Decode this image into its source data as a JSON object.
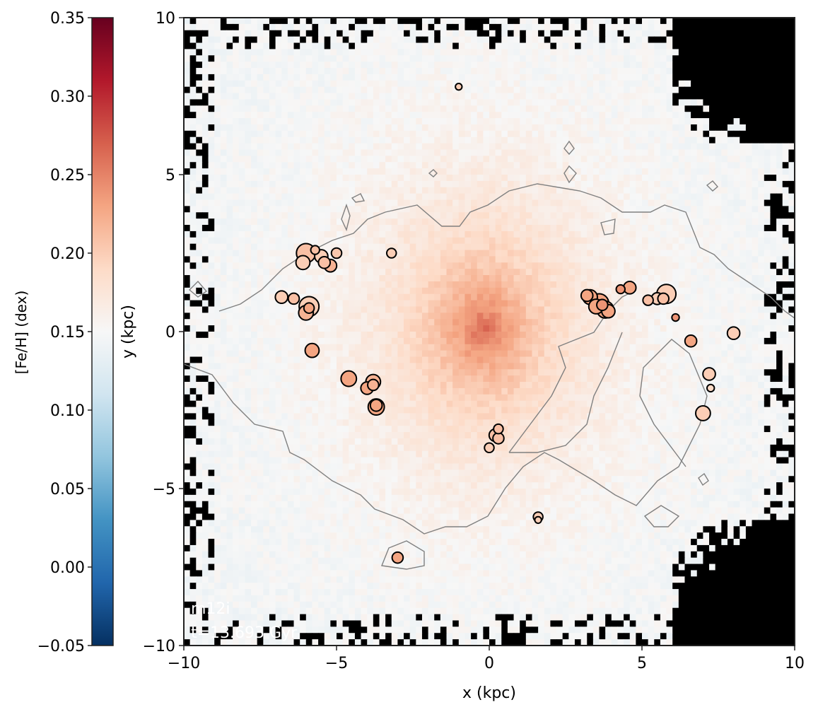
{
  "chart_data": {
    "type": "heatmap",
    "title": "",
    "xlabel": "x (kpc)",
    "ylabel": "y (kpc)",
    "xlim": [
      -10,
      10
    ],
    "ylim": [
      -10,
      10
    ],
    "xticks": [
      -10,
      -5,
      0,
      5,
      10
    ],
    "yticks": [
      -10,
      -5,
      0,
      5,
      10
    ],
    "xtick_labels": [
      "−10",
      "−5",
      "0",
      "5",
      "10"
    ],
    "ytick_labels": [
      "−10",
      "−5",
      "0",
      "5",
      "10"
    ],
    "grid": false,
    "colorbar": {
      "label": "[Fe/H] (dex)",
      "colormap": "RdBu_r",
      "range": [
        -0.05,
        0.35
      ],
      "ticks": [
        -0.05,
        0.0,
        0.05,
        0.1,
        0.15,
        0.2,
        0.25,
        0.3,
        0.35
      ],
      "tick_labels": [
        "−0.05",
        "0.00",
        "0.05",
        "0.10",
        "0.15",
        "0.20",
        "0.25",
        "0.30",
        "0.35"
      ],
      "colors": [
        "#053061",
        "#2166ac",
        "#4393c3",
        "#92c5de",
        "#d1e5f0",
        "#f7f7f7",
        "#fddbc7",
        "#f4a582",
        "#d6604d",
        "#b2182b",
        "#67001f"
      ]
    },
    "annotation": [
      "m12i",
      "t=13.693 Gyr"
    ],
    "map": {
      "center_value": 0.265,
      "background_value": 0.145,
      "peak_xy": [
        -0.2,
        0.1
      ],
      "empty_color": "#000000"
    },
    "contour_color": "#808080",
    "clusters": [
      {
        "x": -6.0,
        "y": 2.5,
        "feh": 0.21,
        "size": 2.6
      },
      {
        "x": -5.5,
        "y": 2.4,
        "feh": 0.2,
        "size": 1.8
      },
      {
        "x": -5.0,
        "y": 2.5,
        "feh": 0.205,
        "size": 1.4
      },
      {
        "x": -6.1,
        "y": 2.2,
        "feh": 0.2,
        "size": 1.9
      },
      {
        "x": -5.7,
        "y": 2.6,
        "feh": 0.21,
        "size": 1.2
      },
      {
        "x": -5.4,
        "y": 2.2,
        "feh": 0.21,
        "size": 1.6
      },
      {
        "x": -5.2,
        "y": 2.1,
        "feh": 0.22,
        "size": 1.7
      },
      {
        "x": -3.2,
        "y": 2.5,
        "feh": 0.2,
        "size": 1.3
      },
      {
        "x": -6.8,
        "y": 1.1,
        "feh": 0.2,
        "size": 1.7
      },
      {
        "x": -6.4,
        "y": 1.05,
        "feh": 0.21,
        "size": 1.5
      },
      {
        "x": -5.9,
        "y": 0.8,
        "feh": 0.2,
        "size": 2.7
      },
      {
        "x": -6.0,
        "y": 0.6,
        "feh": 0.22,
        "size": 2.0
      },
      {
        "x": -5.9,
        "y": 0.75,
        "feh": 0.23,
        "size": 1.4
      },
      {
        "x": -5.8,
        "y": -0.6,
        "feh": 0.23,
        "size": 1.9
      },
      {
        "x": -4.6,
        "y": -1.5,
        "feh": 0.23,
        "size": 2.1
      },
      {
        "x": -4.0,
        "y": -1.8,
        "feh": 0.23,
        "size": 1.7
      },
      {
        "x": -3.8,
        "y": -1.6,
        "feh": 0.22,
        "size": 2.0
      },
      {
        "x": -3.8,
        "y": -1.7,
        "feh": 0.22,
        "size": 1.5
      },
      {
        "x": -3.7,
        "y": -2.4,
        "feh": 0.23,
        "size": 2.2
      },
      {
        "x": -3.7,
        "y": -2.35,
        "feh": 0.23,
        "size": 1.6
      },
      {
        "x": -1.0,
        "y": 7.8,
        "feh": 0.2,
        "size": 0.9
      },
      {
        "x": 0.2,
        "y": -3.3,
        "feh": 0.21,
        "size": 1.7
      },
      {
        "x": 0.3,
        "y": -3.1,
        "feh": 0.21,
        "size": 1.3
      },
      {
        "x": 0.0,
        "y": -3.7,
        "feh": 0.2,
        "size": 1.3
      },
      {
        "x": 0.3,
        "y": -3.4,
        "feh": 0.21,
        "size": 1.5
      },
      {
        "x": 3.3,
        "y": 1.1,
        "feh": 0.23,
        "size": 2.0
      },
      {
        "x": 3.6,
        "y": 0.9,
        "feh": 0.23,
        "size": 2.6
      },
      {
        "x": 3.8,
        "y": 0.7,
        "feh": 0.23,
        "size": 2.3
      },
      {
        "x": 3.5,
        "y": 0.8,
        "feh": 0.23,
        "size": 2.0
      },
      {
        "x": 3.2,
        "y": 1.15,
        "feh": 0.23,
        "size": 1.6
      },
      {
        "x": 3.9,
        "y": 0.65,
        "feh": 0.23,
        "size": 1.8
      },
      {
        "x": 3.7,
        "y": 0.85,
        "feh": 0.24,
        "size": 1.5
      },
      {
        "x": 4.6,
        "y": 1.4,
        "feh": 0.23,
        "size": 1.7
      },
      {
        "x": 4.3,
        "y": 1.35,
        "feh": 0.24,
        "size": 1.2
      },
      {
        "x": 5.8,
        "y": 1.2,
        "feh": 0.2,
        "size": 2.6
      },
      {
        "x": 5.5,
        "y": 1.05,
        "feh": 0.2,
        "size": 1.6
      },
      {
        "x": 5.2,
        "y": 1.0,
        "feh": 0.21,
        "size": 1.4
      },
      {
        "x": 5.7,
        "y": 1.05,
        "feh": 0.21,
        "size": 1.5
      },
      {
        "x": 6.1,
        "y": 0.45,
        "feh": 0.24,
        "size": 1.0
      },
      {
        "x": 6.6,
        "y": -0.3,
        "feh": 0.23,
        "size": 1.6
      },
      {
        "x": 8.0,
        "y": -0.05,
        "feh": 0.2,
        "size": 1.7
      },
      {
        "x": 7.2,
        "y": -1.35,
        "feh": 0.2,
        "size": 1.7
      },
      {
        "x": 7.25,
        "y": -1.8,
        "feh": 0.19,
        "size": 1.0
      },
      {
        "x": 7.0,
        "y": -2.6,
        "feh": 0.2,
        "size": 2.0
      },
      {
        "x": 1.6,
        "y": -5.9,
        "feh": 0.2,
        "size": 1.3
      },
      {
        "x": 1.6,
        "y": -6.0,
        "feh": 0.2,
        "size": 0.9
      },
      {
        "x": -3.0,
        "y": -7.2,
        "feh": 0.23,
        "size": 1.5
      }
    ]
  }
}
